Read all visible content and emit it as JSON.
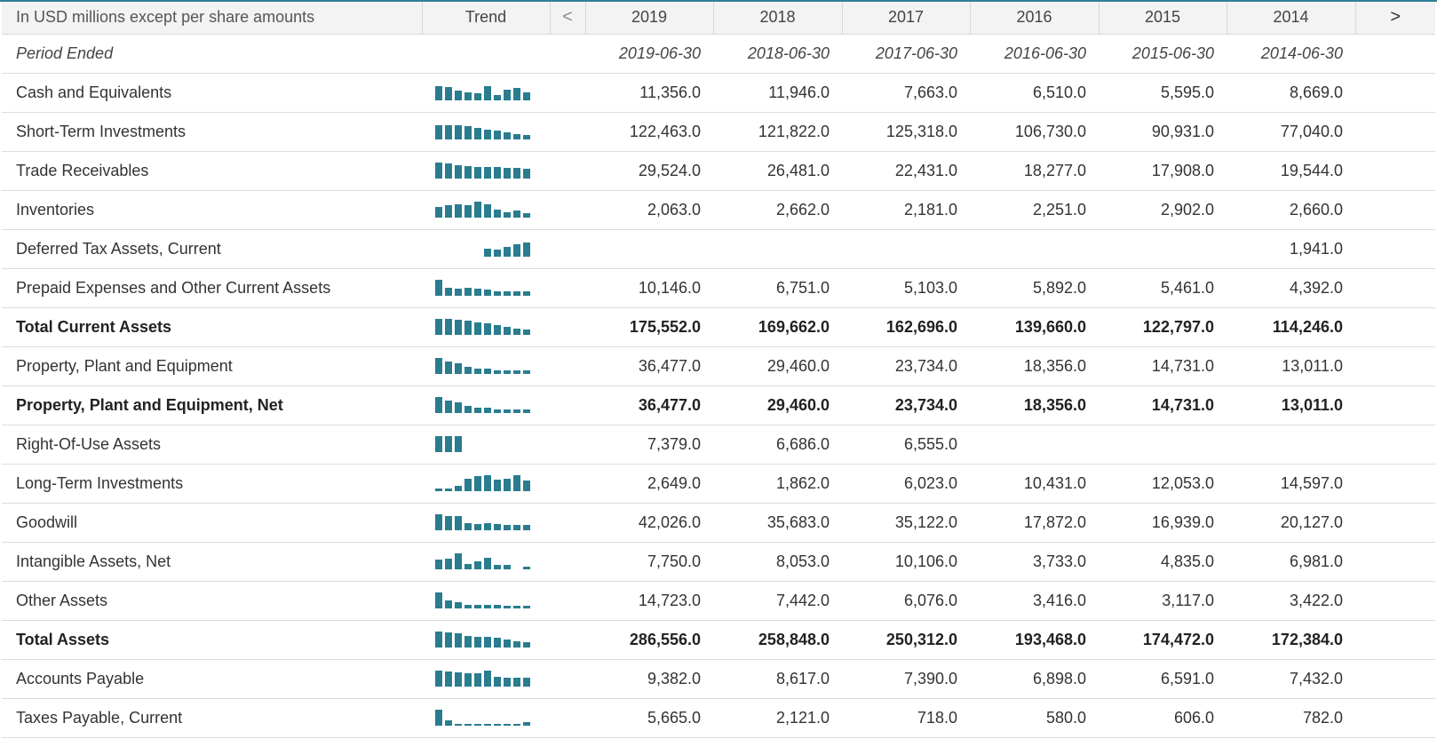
{
  "header": {
    "label": "In USD millions except per share amounts",
    "trend": "Trend",
    "prev_arrow": "<",
    "next_arrow": ">",
    "years": [
      "2019",
      "2018",
      "2017",
      "2016",
      "2015",
      "2014"
    ]
  },
  "period": {
    "label": "Period Ended",
    "dates": [
      "2019-06-30",
      "2018-06-30",
      "2017-06-30",
      "2016-06-30",
      "2015-06-30",
      "2014-06-30"
    ]
  },
  "accent_color": "#2a7c8f",
  "rows": [
    {
      "label": "Cash and Equivalents",
      "bold": false,
      "values": [
        "11,356.0",
        "11,946.0",
        "7,663.0",
        "6,510.0",
        "5,595.0",
        "8,669.0"
      ],
      "trend": [
        8.0,
        7.5,
        5.5,
        4.5,
        4.0,
        8.0,
        3.0,
        6.0,
        7.0,
        4.5
      ]
    },
    {
      "label": "Short-Term Investments",
      "bold": false,
      "values": [
        "122,463.0",
        "121,822.0",
        "125,318.0",
        "106,730.0",
        "90,931.0",
        "77,040.0"
      ],
      "trend": [
        8.0,
        8.0,
        8.0,
        7.5,
        6.5,
        5.5,
        5.0,
        4.0,
        3.0,
        2.5
      ]
    },
    {
      "label": "Trade Receivables",
      "bold": false,
      "values": [
        "29,524.0",
        "26,481.0",
        "22,431.0",
        "18,277.0",
        "17,908.0",
        "19,544.0"
      ],
      "trend": [
        9.0,
        8.5,
        7.5,
        7.0,
        6.5,
        6.5,
        6.5,
        6.0,
        6.0,
        5.5
      ]
    },
    {
      "label": "Inventories",
      "bold": false,
      "values": [
        "2,063.0",
        "2,662.0",
        "2,181.0",
        "2,251.0",
        "2,902.0",
        "2,660.0"
      ],
      "trend": [
        6.0,
        7.0,
        7.5,
        7.0,
        9.0,
        7.5,
        4.5,
        3.0,
        4.0,
        2.5
      ]
    },
    {
      "label": "Deferred Tax Assets, Current",
      "bold": false,
      "values": [
        "",
        "",
        "",
        "",
        "",
        "1,941.0"
      ],
      "trend": [
        null,
        null,
        null,
        null,
        null,
        4.5,
        4.0,
        5.5,
        7.0,
        8.0
      ]
    },
    {
      "label": "Prepaid Expenses and Other Current Assets",
      "bold": false,
      "values": [
        "10,146.0",
        "6,751.0",
        "5,103.0",
        "5,892.0",
        "5,461.0",
        "4,392.0"
      ],
      "trend": [
        9.0,
        4.5,
        4.0,
        4.5,
        4.0,
        3.5,
        2.5,
        2.5,
        2.5,
        2.5
      ]
    },
    {
      "label": "Total Current Assets",
      "bold": true,
      "values": [
        "175,552.0",
        "169,662.0",
        "162,696.0",
        "139,660.0",
        "122,797.0",
        "114,246.0"
      ],
      "trend": [
        9.0,
        9.0,
        8.5,
        8.0,
        7.0,
        6.5,
        5.5,
        4.5,
        3.5,
        3.0
      ]
    },
    {
      "label": "Property, Plant and Equipment",
      "bold": false,
      "values": [
        "36,477.0",
        "29,460.0",
        "23,734.0",
        "18,356.0",
        "14,731.0",
        "13,011.0"
      ],
      "trend": [
        9.0,
        7.0,
        6.0,
        4.0,
        3.0,
        3.0,
        2.0,
        2.0,
        2.0,
        2.0
      ]
    },
    {
      "label": "Property, Plant and Equipment, Net",
      "bold": true,
      "values": [
        "36,477.0",
        "29,460.0",
        "23,734.0",
        "18,356.0",
        "14,731.0",
        "13,011.0"
      ],
      "trend": [
        9.0,
        7.0,
        6.0,
        4.0,
        3.0,
        3.0,
        2.0,
        2.0,
        2.0,
        2.0
      ]
    },
    {
      "label": "Right-Of-Use Assets",
      "bold": false,
      "values": [
        "7,379.0",
        "6,686.0",
        "6,555.0",
        "",
        "",
        ""
      ],
      "trend": [
        9.0,
        9.0,
        9.0,
        null,
        null,
        null,
        null,
        null,
        null,
        null
      ]
    },
    {
      "label": "Long-Term Investments",
      "bold": false,
      "values": [
        "2,649.0",
        "1,862.0",
        "6,023.0",
        "10,431.0",
        "12,053.0",
        "14,597.0"
      ],
      "trend": [
        1.5,
        1.5,
        3.0,
        7.0,
        8.5,
        9.0,
        6.5,
        7.0,
        9.0,
        6.0
      ]
    },
    {
      "label": "Goodwill",
      "bold": false,
      "values": [
        "42,026.0",
        "35,683.0",
        "35,122.0",
        "17,872.0",
        "16,939.0",
        "20,127.0"
      ],
      "trend": [
        9.0,
        8.0,
        8.0,
        4.0,
        3.5,
        4.0,
        3.5,
        3.0,
        3.0,
        3.0
      ]
    },
    {
      "label": "Intangible Assets, Net",
      "bold": false,
      "values": [
        "7,750.0",
        "8,053.0",
        "10,106.0",
        "3,733.0",
        "4,835.0",
        "6,981.0"
      ],
      "trend": [
        5.5,
        6.0,
        9.0,
        3.0,
        4.5,
        6.5,
        2.5,
        2.5,
        null,
        1.5
      ]
    },
    {
      "label": "Other Assets",
      "bold": false,
      "values": [
        "14,723.0",
        "7,442.0",
        "6,076.0",
        "3,416.0",
        "3,117.0",
        "3,422.0"
      ],
      "trend": [
        9.0,
        4.5,
        3.5,
        2.0,
        2.0,
        2.0,
        2.0,
        1.5,
        1.5,
        1.5
      ]
    },
    {
      "label": "Total Assets",
      "bold": true,
      "values": [
        "286,556.0",
        "258,848.0",
        "250,312.0",
        "193,468.0",
        "174,472.0",
        "172,384.0"
      ],
      "trend": [
        9.0,
        8.5,
        8.0,
        6.5,
        6.0,
        6.0,
        5.5,
        4.5,
        3.5,
        3.0
      ]
    },
    {
      "label": "Accounts Payable",
      "bold": false,
      "values": [
        "9,382.0",
        "8,617.0",
        "7,390.0",
        "6,898.0",
        "6,591.0",
        "7,432.0"
      ],
      "trend": [
        9.0,
        8.5,
        8.0,
        7.5,
        7.5,
        9.0,
        5.5,
        5.0,
        5.0,
        5.0
      ]
    },
    {
      "label": "Taxes Payable, Current",
      "bold": false,
      "values": [
        "5,665.0",
        "2,121.0",
        "718.0",
        "580.0",
        "606.0",
        "782.0"
      ],
      "trend": [
        9.0,
        3.0,
        1.0,
        1.0,
        1.0,
        1.0,
        1.0,
        1.0,
        1.0,
        2.0
      ]
    }
  ]
}
